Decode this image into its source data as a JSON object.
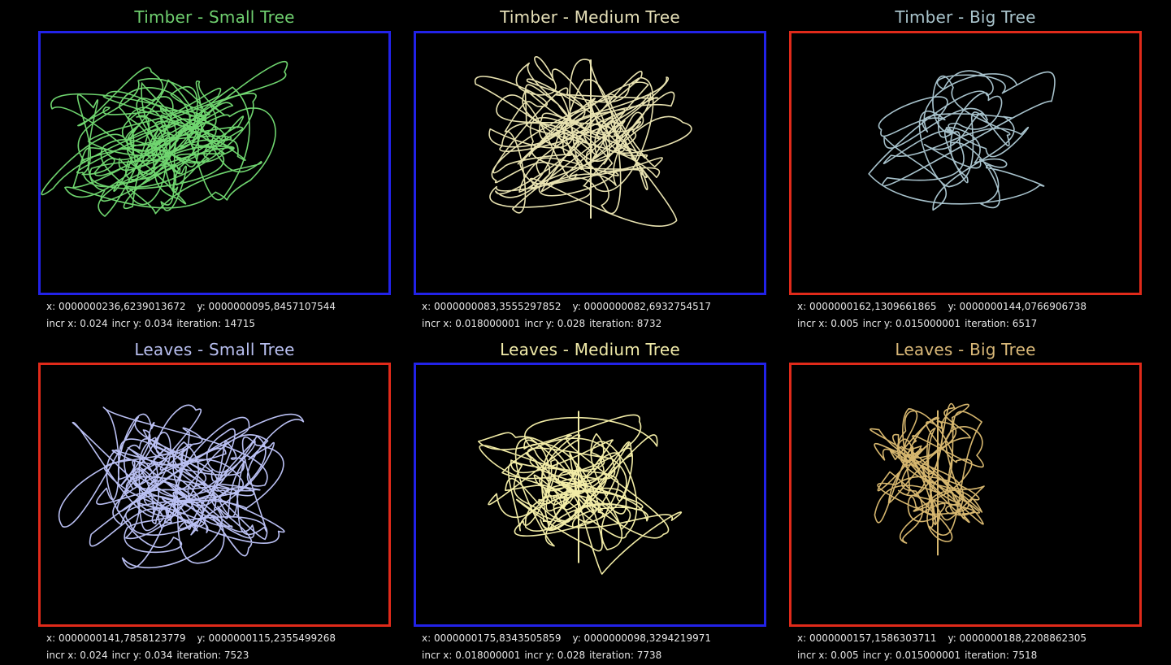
{
  "panels": [
    {
      "title": "Timber - Small Tree",
      "title_color": "#6fcf6f",
      "frame_color": "#2222e8",
      "stroke_color": "#6fd56f",
      "x_label": "x: 0000000236,6239013672",
      "y_label": "y: 0000000095,8457107544",
      "incr_x": "incr x: 0.024",
      "incr_y": "incr y: 0.034",
      "iteration": "iteration: 14715"
    },
    {
      "title": "Timber - Medium Tree",
      "title_color": "#e6e0b8",
      "frame_color": "#2222e8",
      "stroke_color": "#e8e2b0",
      "x_label": "x: 0000000083,3555297852",
      "y_label": "y: 0000000082,6932754517",
      "incr_x": "incr x: 0.018000001",
      "incr_y": "incr y: 0.028",
      "iteration": "iteration: 8732"
    },
    {
      "title": "Timber - Big Tree",
      "title_color": "#a9c4cc",
      "frame_color": "#e02a1a",
      "stroke_color": "#a7c2cc",
      "x_label": "x: 0000000162,1309661865",
      "y_label": "y: 0000000144,0766906738",
      "incr_x": "incr x: 0.005",
      "incr_y": "incr y: 0.015000001",
      "iteration": "iteration: 6517"
    },
    {
      "title": "Leaves - Small Tree",
      "title_color": "#b8bff0",
      "frame_color": "#e02a1a",
      "stroke_color": "#b9bff2",
      "x_label": "x: 0000000141,7858123779",
      "y_label": "y: 0000000115,2355499268",
      "incr_x": "incr x: 0.024",
      "incr_y": "incr y: 0.034",
      "iteration": "iteration: 7523"
    },
    {
      "title": "Leaves - Medium Tree",
      "title_color": "#f0eaa8",
      "frame_color": "#2222e8",
      "stroke_color": "#f2eca6",
      "x_label": "x: 0000000175,8343505859",
      "y_label": "y: 0000000098,3294219971",
      "incr_x": "incr x: 0.018000001",
      "incr_y": "incr y: 0.028",
      "iteration": "iteration: 7738"
    },
    {
      "title": "Leaves - Big Tree",
      "title_color": "#d9b878",
      "frame_color": "#e02a1a",
      "stroke_color": "#d6b66e",
      "x_label": "x: 0000000157,1586303711",
      "y_label": "y: 0000000188,2208862305",
      "incr_x": "incr x: 0.005",
      "incr_y": "incr y: 0.015000001",
      "iteration": "iteration: 7518"
    }
  ]
}
